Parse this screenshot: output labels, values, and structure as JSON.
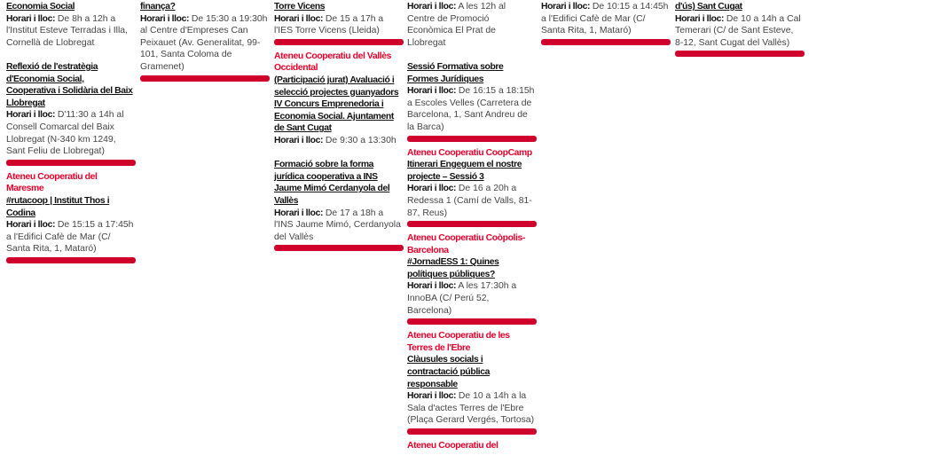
{
  "accent_color": "#d0002d",
  "org_color": "#e4002b",
  "label": "Horari i lloc:",
  "columns": [
    {
      "groups": [
        {
          "events": [
            {
              "title": "Economia Social",
              "text": "De 8h a 12h a l'Institut Esteve Terradas i Illa, Cornellà de Llobregat"
            },
            {
              "title": "Reflexió de l'estratègia d'Economia Social, Cooperativa i Solidària del Baix Llobregat",
              "text": "D'11:30 a 14h al Consell Comarcal del Baix Llobregat (N-340 km 1249, Sant Feliu de Llobregat)"
            }
          ]
        },
        {
          "events": [
            {
              "org": "Ateneu Cooperatiu del Maresme",
              "title": "#rutacoop | Institut Thos i Codina",
              "text": "De 15:15 a 17:45h a l'Edifici Cafè de Mar (C/ Santa Rita, 1, Mataró)"
            }
          ]
        }
      ]
    },
    {
      "groups": [
        {
          "events": [
            {
              "title": "finança?",
              "text": "De 15:30 a 19:30h al Centre d'Empreses Can Peixauet (Av. Generalitat, 99-101, Santa Coloma de Gramenet)"
            }
          ]
        }
      ]
    },
    {
      "groups": [
        {
          "events": [
            {
              "title": "Torre Vicens",
              "text": "De 15 a 17h a l'IES Torre Vicens (Lleida)"
            }
          ]
        },
        {
          "events": [
            {
              "org": "Ateneu Cooperatiu del Vallès Occidental",
              "title": "(Participació jurat) Avaluació i selecció projectes guanyadors IV Concurs Emprenedoria i Economia Social. Ajuntament de Sant Cugat",
              "text": "De 9:30 a 13:30h"
            },
            {
              "title": "Formació sobre la forma jurídica cooperativa a INS Jaume Mimó Cerdanyola del Vallès",
              "text": "De 17 a 18h a l'INS Jaume Mimó, Cerdanyola del Vallès"
            }
          ]
        }
      ]
    },
    {
      "groups": [
        {
          "events": [
            {
              "text": "A les 12h al Centre de Promoció Econòmica El Prat de Llobregat"
            },
            {
              "title": "Sessió Formativa sobre Formes Jurídiques",
              "text": "De 16:15 a 18:15h a Escoles Velles (Carretera de Barcelona, 1, Sant Andreu de la Barca)"
            }
          ]
        },
        {
          "events": [
            {
              "org": "Ateneu Cooperatiu CoopCamp",
              "title": "Itinerari Engeguem el nostre projecte – Sessió 3",
              "text": "De 16 a 20h a Redessa 1 (Camí de Valls, 81-87, Reus)"
            }
          ]
        },
        {
          "events": [
            {
              "org": "Ateneu Cooperatiu Coòpolis-Barcelona",
              "title": "#JornadESS 1: Quines polítiques públiques?",
              "text": "A les 17:30h a InnoBA (C/ Perú 52, Barcelona)"
            }
          ]
        },
        {
          "events": [
            {
              "org": "Ateneu Cooperatiu de les Terres de l'Ebre",
              "title": "Clàusules socials i contractació pública responsable",
              "text": "De 10 a 14h a la Sala d'actes Terres de l'Ebre (Plaça Gerard Vergés, Tortosa)"
            }
          ]
        },
        {
          "nobar": true,
          "events": [
            {
              "org": "Ateneu Cooperatiu del"
            }
          ]
        }
      ]
    },
    {
      "groups": [
        {
          "events": [
            {
              "text": "De 10:15 a 14:45h a l'Edifici Cafè de Mar (C/ Santa Rita, 1, Mataró)"
            }
          ]
        }
      ]
    },
    {
      "groups": [
        {
          "events": [
            {
              "title": "d'ús) Sant Cugat",
              "text": "De 10 a 14h a Cal Temerari (C/ de Sant Esteve, 8-12, Sant Cugat del Vallès)"
            }
          ]
        }
      ]
    }
  ]
}
